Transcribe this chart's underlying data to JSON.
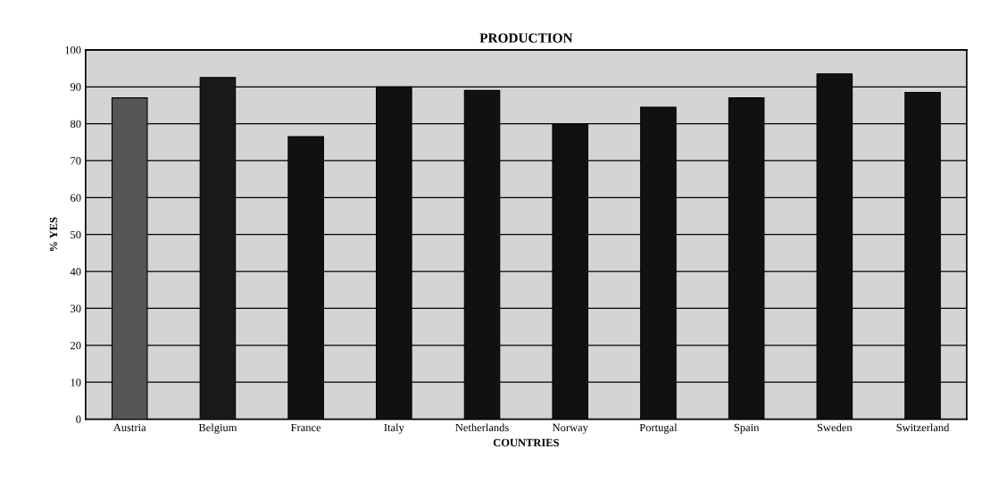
{
  "chart_data": {
    "type": "bar",
    "title": "PRODUCTION",
    "xlabel": "COUNTRIES",
    "ylabel": "% YES",
    "categories": [
      "Austria",
      "Belgium",
      "France",
      "Italy",
      "Netherlands",
      "Norway",
      "Portugal",
      "Spain",
      "Sweden",
      "Switzerland"
    ],
    "values": [
      87,
      92.5,
      76.5,
      90,
      89,
      80,
      84.5,
      87,
      93.5,
      88.5
    ],
    "colors": [
      "#555555",
      "#1a1a1a",
      "#111111",
      "#111111",
      "#111111",
      "#111111",
      "#111111",
      "#111111",
      "#111111",
      "#111111"
    ],
    "ylim": [
      0,
      100
    ],
    "yticks": [
      0,
      10,
      20,
      30,
      40,
      50,
      60,
      70,
      80,
      90,
      100
    ],
    "grid": "y"
  }
}
